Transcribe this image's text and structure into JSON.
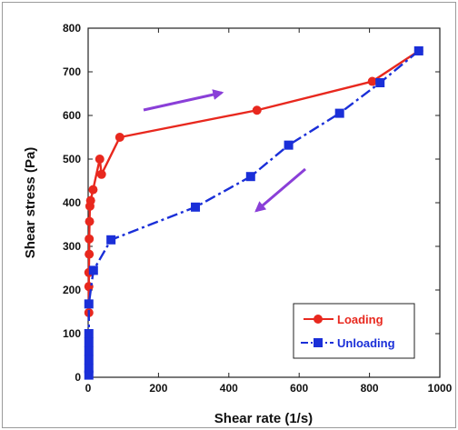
{
  "chart_data": {
    "type": "line",
    "title": "",
    "xlabel": "Shear rate (1/s)",
    "ylabel": "Shear stress (Pa)",
    "xlim": [
      0,
      1000
    ],
    "ylim": [
      0,
      800
    ],
    "xticks": [
      0,
      200,
      400,
      600,
      800,
      1000
    ],
    "yticks": [
      0,
      100,
      200,
      300,
      400,
      500,
      600,
      700,
      800
    ],
    "grid": false,
    "legend_position": "bottom-right",
    "series": [
      {
        "name": "Loading",
        "color": "#e8281e",
        "marker": "circle",
        "line_style": "solid",
        "x": [
          2,
          2,
          2,
          3,
          3,
          4,
          5,
          7,
          14,
          33,
          38,
          90,
          480,
          808,
          940
        ],
        "y": [
          148,
          208,
          240,
          282,
          317,
          357,
          392,
          405,
          430,
          500,
          465,
          550,
          612,
          678,
          748
        ]
      },
      {
        "name": "Unloading",
        "color": "#1a2fd8",
        "marker": "square",
        "line_style": "dash-dot",
        "x": [
          940,
          830,
          715,
          570,
          462,
          305,
          65,
          15,
          2,
          2,
          2,
          2,
          2,
          2,
          2
        ],
        "y": [
          748,
          675,
          605,
          532,
          460,
          390,
          315,
          245,
          168,
          100,
          80,
          60,
          40,
          20,
          5
        ]
      }
    ],
    "annotations": [
      {
        "type": "arrow",
        "direction": "right-up",
        "color": "#8a3fd8"
      },
      {
        "type": "arrow",
        "direction": "left-down",
        "color": "#8a3fd8"
      }
    ]
  }
}
